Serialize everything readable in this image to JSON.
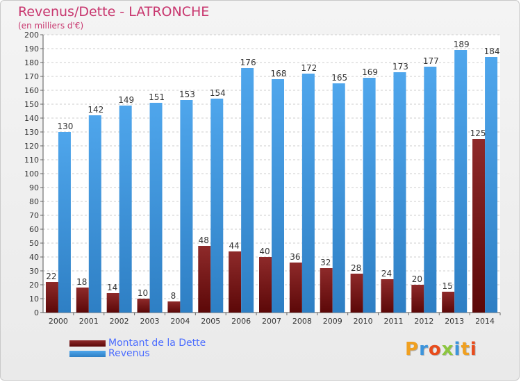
{
  "chart_data": {
    "type": "bar",
    "title": "Revenus/Dette - LATRONCHE",
    "subtitle": "(en milliers d'€)",
    "categories": [
      "2000",
      "2001",
      "2002",
      "2003",
      "2004",
      "2005",
      "2006",
      "2007",
      "2008",
      "2009",
      "2010",
      "2011",
      "2012",
      "2013",
      "2014"
    ],
    "series": [
      {
        "name": "Montant de la Dette",
        "color": "#7a1616",
        "values": [
          22,
          18,
          14,
          10,
          8,
          48,
          44,
          40,
          36,
          32,
          28,
          24,
          20,
          15,
          125
        ]
      },
      {
        "name": "Revenus",
        "color": "#3c94dc",
        "values": [
          130,
          142,
          149,
          151,
          153,
          154,
          176,
          168,
          172,
          165,
          169,
          173,
          177,
          189,
          184
        ]
      }
    ],
    "ylim": [
      0,
      200
    ],
    "ytick_step": 10,
    "grid": true,
    "legend_position": "bottom-left"
  },
  "logo": {
    "text": "Proxiti",
    "letters": [
      "P",
      "r",
      "o",
      "x",
      "i",
      "t",
      "i"
    ],
    "colors": [
      "#f0a020",
      "#3c94dc",
      "#e84c1c",
      "#8cc63f",
      "#3c94dc",
      "#f0a020",
      "#e84c1c"
    ]
  }
}
